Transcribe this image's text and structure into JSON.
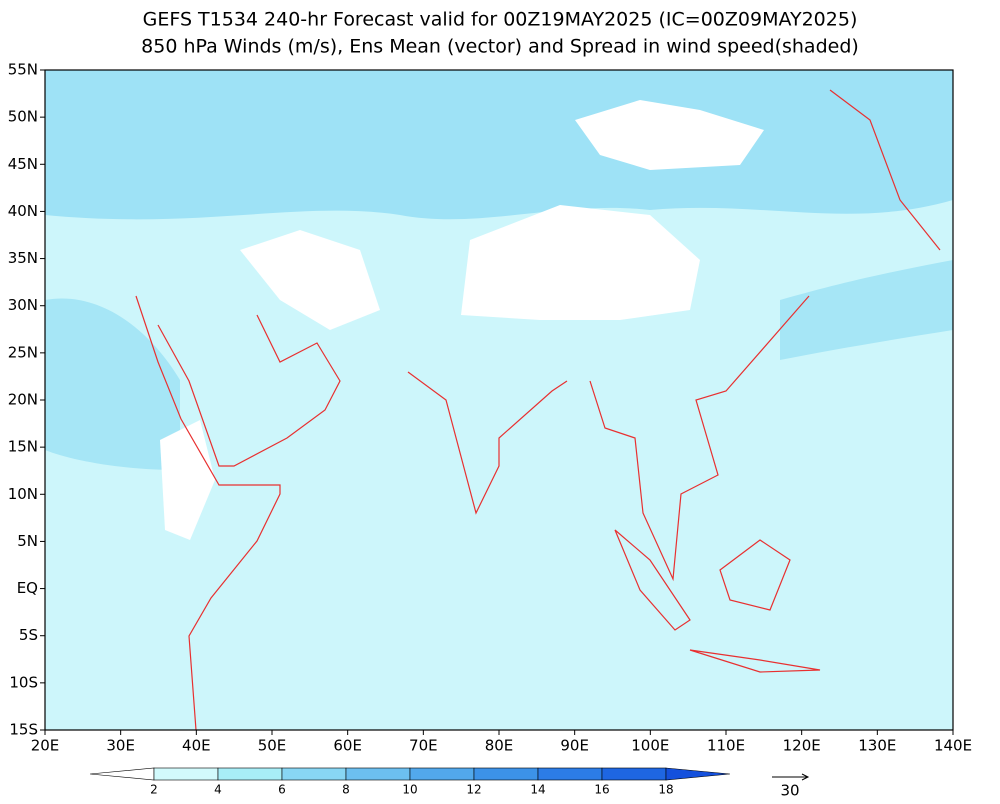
{
  "chart_data": {
    "type": "map",
    "title": "GEFS T1534 240-hr Forecast valid for 00Z19MAY2025 (IC=00Z09MAY2025)",
    "subtitle": "850 hPa Winds (m/s), Ens Mean (vector) and Spread in wind speed(shaded)",
    "xlim": [
      20,
      140
    ],
    "xticks": [
      {
        "value": 20,
        "label": "20E"
      },
      {
        "value": 30,
        "label": "30E"
      },
      {
        "value": 40,
        "label": "40E"
      },
      {
        "value": 50,
        "label": "50E"
      },
      {
        "value": 60,
        "label": "60E"
      },
      {
        "value": 70,
        "label": "70E"
      },
      {
        "value": 80,
        "label": "80E"
      },
      {
        "value": 90,
        "label": "90E"
      },
      {
        "value": 100,
        "label": "100E"
      },
      {
        "value": 110,
        "label": "110E"
      },
      {
        "value": 120,
        "label": "120E"
      },
      {
        "value": 130,
        "label": "130E"
      },
      {
        "value": 140,
        "label": "140E"
      }
    ],
    "ylim": [
      -15,
      55
    ],
    "yticks": [
      {
        "value": -15,
        "label": "15S"
      },
      {
        "value": -10,
        "label": "10S"
      },
      {
        "value": -5,
        "label": "5S"
      },
      {
        "value": 0,
        "label": "EQ"
      },
      {
        "value": 5,
        "label": "5N"
      },
      {
        "value": 10,
        "label": "10N"
      },
      {
        "value": 15,
        "label": "15N"
      },
      {
        "value": 20,
        "label": "20N"
      },
      {
        "value": 25,
        "label": "25N"
      },
      {
        "value": 30,
        "label": "30N"
      },
      {
        "value": 35,
        "label": "35N"
      },
      {
        "value": 40,
        "label": "40N"
      },
      {
        "value": 45,
        "label": "45N"
      },
      {
        "value": 50,
        "label": "50N"
      },
      {
        "value": 55,
        "label": "55N"
      }
    ],
    "colorbar": {
      "levels": [
        2,
        4,
        6,
        8,
        10,
        12,
        14,
        16,
        18
      ],
      "colors": [
        "#ffffff",
        "#d2fafc",
        "#a8eef7",
        "#88d6f4",
        "#6cbff0",
        "#52a8ec",
        "#3c92e8",
        "#2c7ce6",
        "#1e66e2",
        "#1450dc"
      ]
    },
    "reference_vector": 30
  }
}
